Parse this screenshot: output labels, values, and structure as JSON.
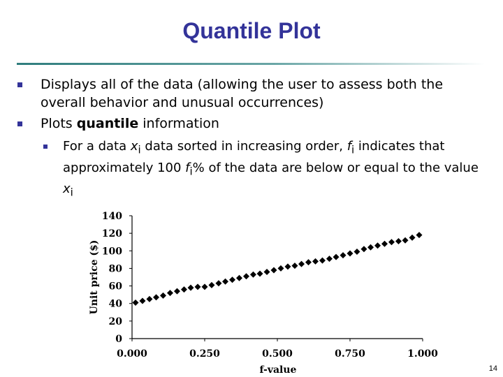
{
  "slide": {
    "title": "Quantile Plot",
    "page_number": "14"
  },
  "bullets": [
    {
      "text": "Displays all of the data (allowing the user to assess both the overall behavior and unusual occurrences)"
    },
    {
      "prefix": "Plots ",
      "bold": "quantile",
      "suffix": " information"
    }
  ],
  "sub_bullet": {
    "t1": "For a data ",
    "v1": "x",
    "s1": "i",
    "t2": " data sorted in increasing order, ",
    "v2": "f",
    "s2": "i",
    "t3": " indicates that approximately 100 ",
    "v3": "f",
    "s3": "i",
    "t4": "% of the data are below or equal to the value ",
    "v4": "x",
    "s4": "i"
  },
  "chart_data": {
    "type": "scatter",
    "xlabel": "f-value",
    "ylabel": "Unit price ($)",
    "xlim": [
      0,
      1
    ],
    "ylim": [
      0,
      140
    ],
    "x_ticks": [
      "0.000",
      "0.250",
      "0.500",
      "0.750",
      "1.000"
    ],
    "y_ticks": [
      "0",
      "20",
      "40",
      "60",
      "80",
      "100",
      "120",
      "140"
    ],
    "grid": false,
    "legend": "none",
    "marker": "diamond",
    "color": "#000000",
    "x": [
      0.012,
      0.036,
      0.06,
      0.083,
      0.107,
      0.131,
      0.155,
      0.179,
      0.202,
      0.226,
      0.25,
      0.274,
      0.298,
      0.321,
      0.345,
      0.369,
      0.393,
      0.417,
      0.44,
      0.464,
      0.488,
      0.512,
      0.536,
      0.56,
      0.583,
      0.607,
      0.631,
      0.655,
      0.679,
      0.702,
      0.726,
      0.75,
      0.774,
      0.798,
      0.821,
      0.845,
      0.869,
      0.893,
      0.917,
      0.94,
      0.964,
      0.988
    ],
    "y": [
      41,
      43,
      45,
      47,
      49,
      52,
      54,
      56,
      58,
      59,
      59,
      61,
      63,
      65,
      67,
      69,
      71,
      73,
      74,
      76,
      78,
      80,
      82,
      83,
      85,
      87,
      88,
      89,
      91,
      93,
      95,
      97,
      99,
      102,
      104,
      106,
      108,
      110,
      111,
      112,
      115,
      118
    ]
  }
}
